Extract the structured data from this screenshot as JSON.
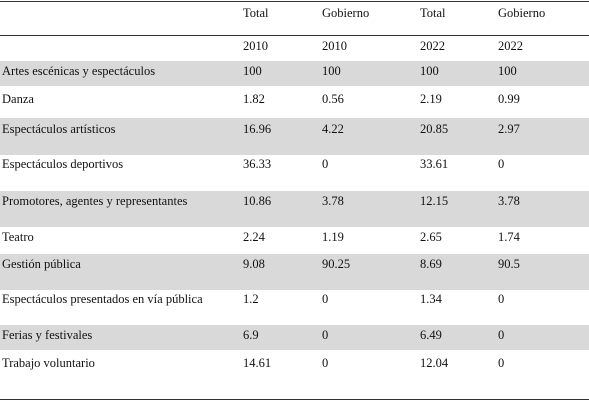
{
  "header": {
    "row1": [
      "",
      "Total",
      "Gobierno",
      "Total",
      "Gobierno"
    ],
    "row2": [
      "",
      "2010",
      "2010",
      "2022",
      "2022"
    ]
  },
  "rows": [
    {
      "label": "Artes escénicas y espectáculos",
      "v": [
        "100",
        "100",
        "100",
        "100"
      ]
    },
    {
      "label": "Danza",
      "v": [
        "1.82",
        "0.56",
        "2.19",
        "0.99"
      ]
    },
    {
      "label": "Espectáculos  artísticos",
      "v": [
        "16.96",
        "4.22",
        "20.85",
        "2.97"
      ]
    },
    {
      "label": "Espectáculos  deportivos",
      "v": [
        "36.33",
        "0",
        "33.61",
        "0"
      ]
    },
    {
      "label": "Promotores, agentes y representantes",
      "v": [
        "10.86",
        "3.78",
        "12.15",
        "3.78"
      ]
    },
    {
      "label": "Teatro",
      "v": [
        "2.24",
        "1.19",
        "2.65",
        "1.74"
      ]
    },
    {
      "label": "Gestión pública",
      "v": [
        "9.08",
        "90.25",
        "8.69",
        "90.5"
      ]
    },
    {
      "label": "Espectáculos presentados en vía pública",
      "v": [
        "1.2",
        "0",
        "1.34",
        "0"
      ]
    },
    {
      "label": "Ferias y festivales",
      "v": [
        "6.9",
        "0",
        "6.49",
        "0"
      ]
    },
    {
      "label": "Trabajo voluntario",
      "v": [
        "14.61",
        "0",
        "12.04",
        "0"
      ]
    }
  ]
}
